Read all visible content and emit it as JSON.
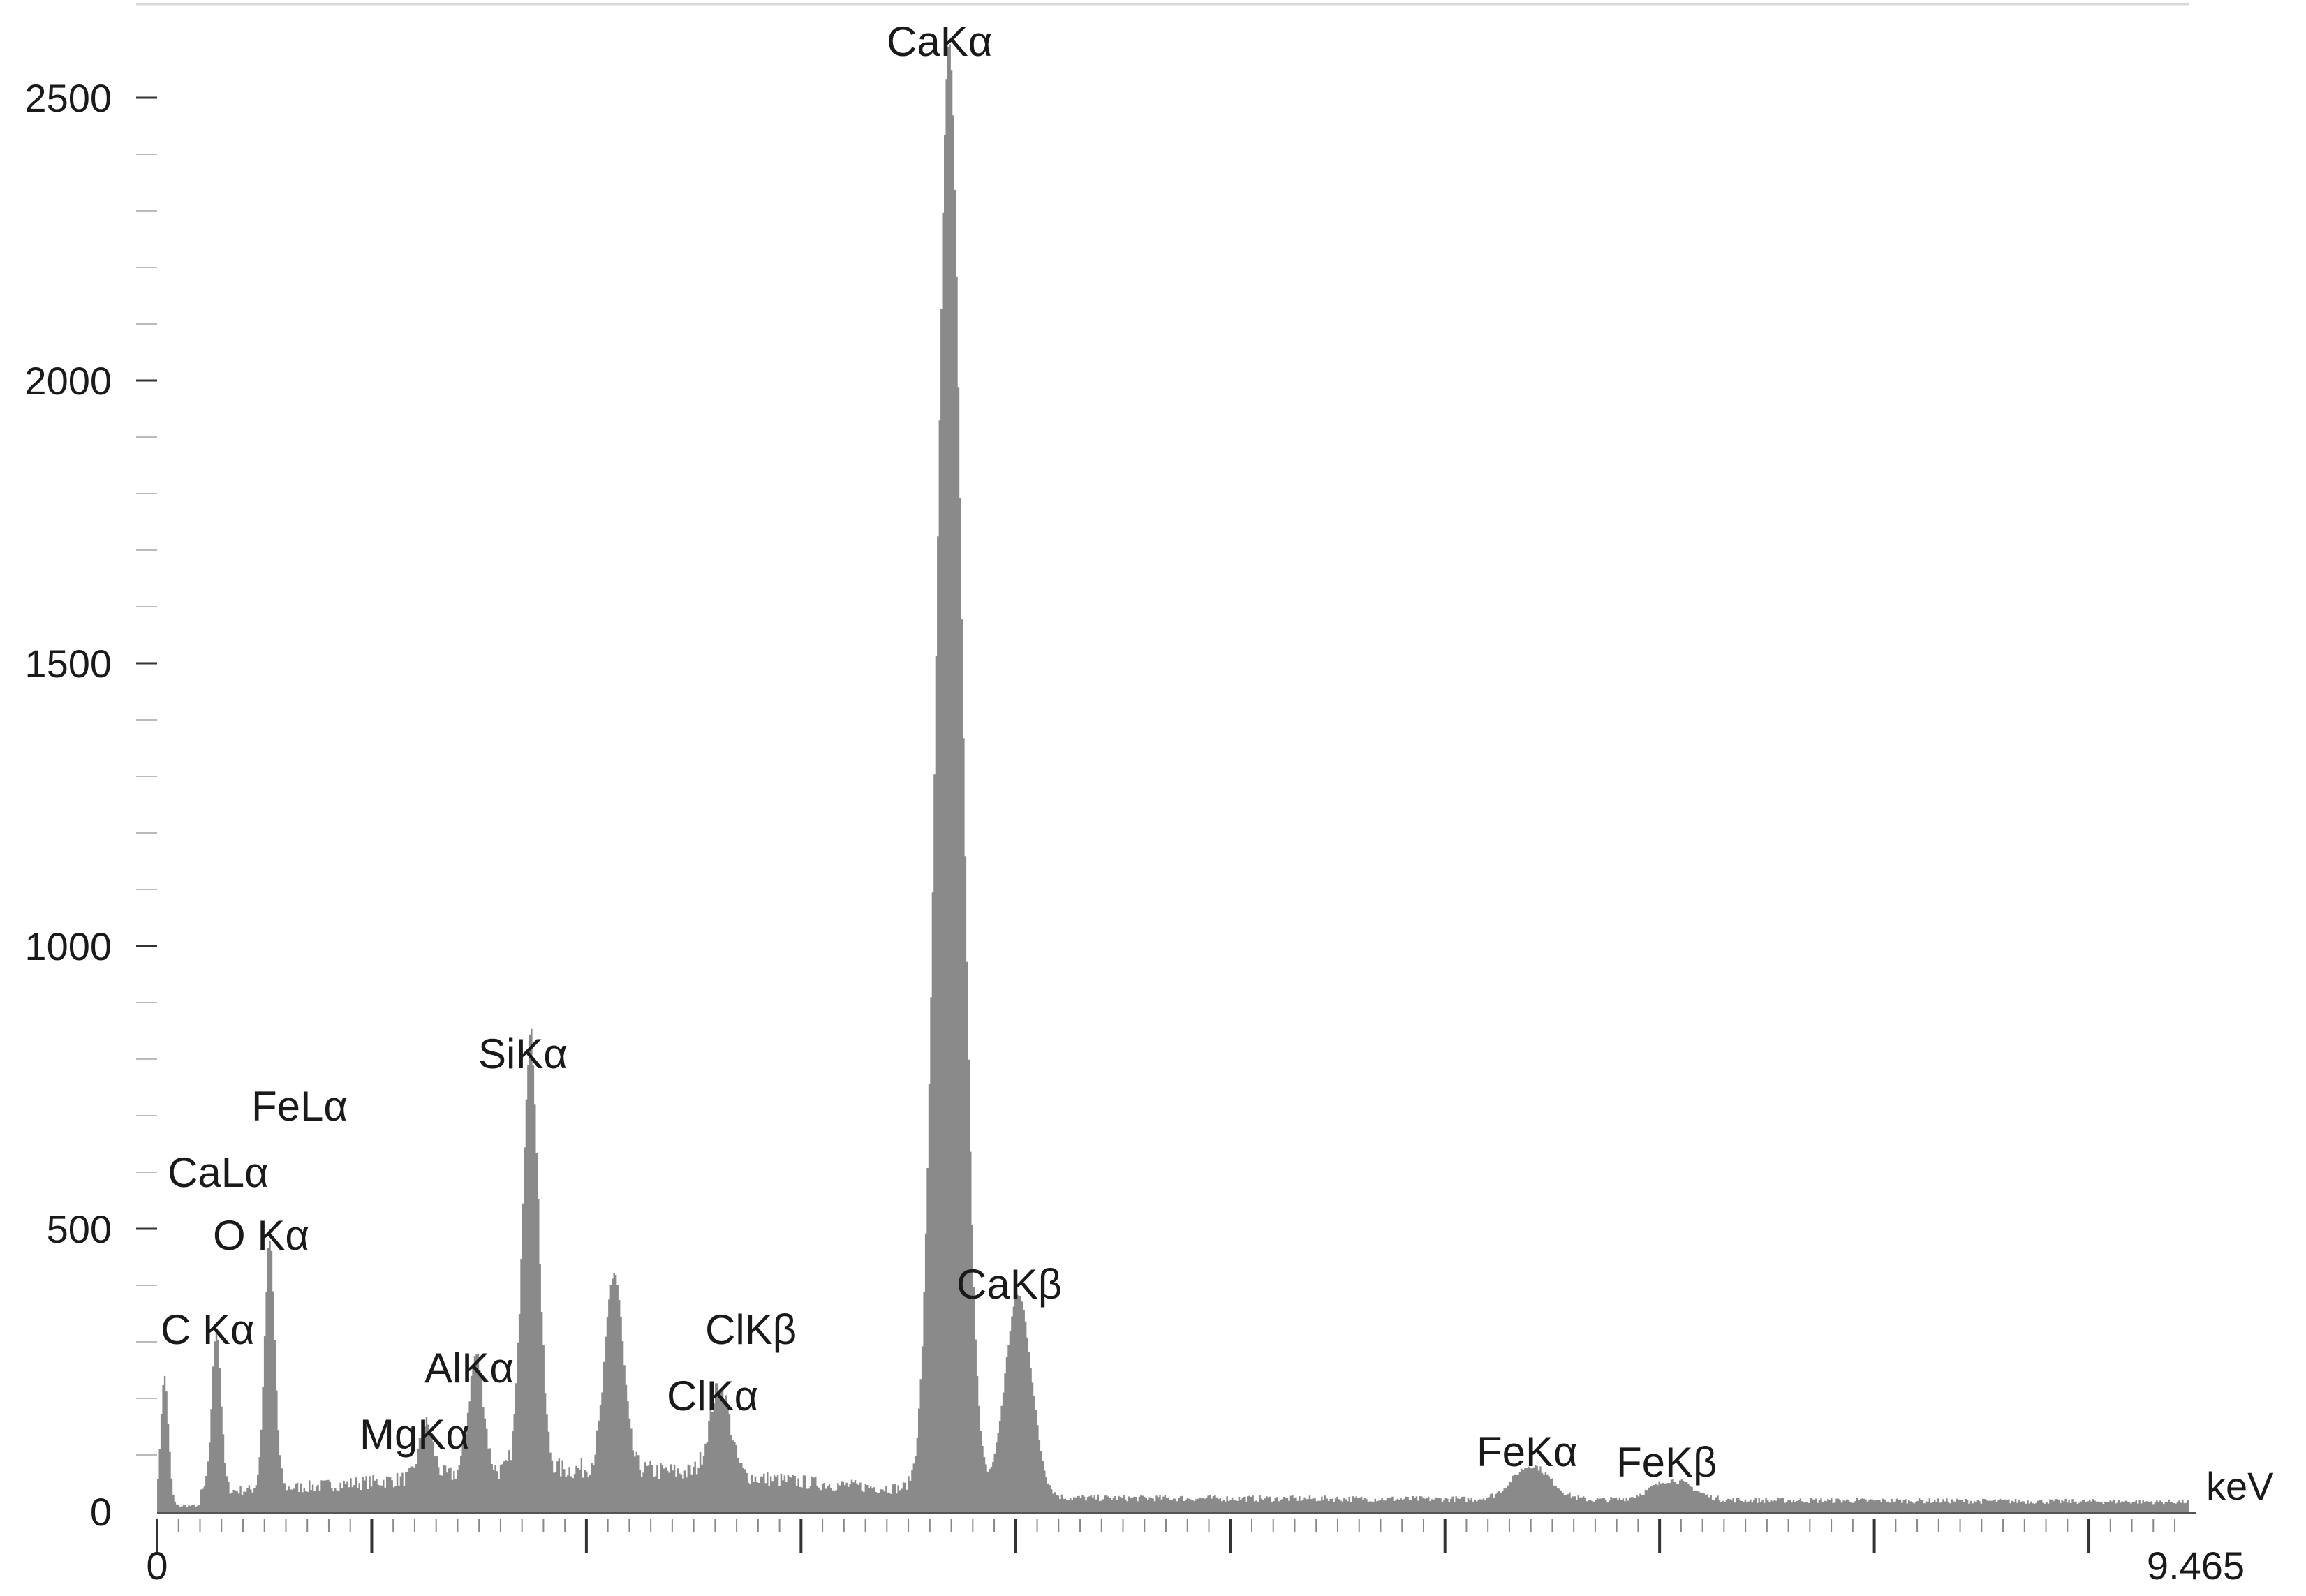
{
  "chart_data": {
    "type": "bar",
    "title": "",
    "xlabel": "keV",
    "ylabel": "",
    "xlim": [
      0,
      9.465
    ],
    "ylim": [
      0,
      2600
    ],
    "grid": false,
    "legend": "none",
    "bar_color": "#8a8a8a",
    "x_tick_labels": [
      {
        "value": 0,
        "label": "0"
      },
      {
        "value": 9.465,
        "label": "9.465"
      }
    ],
    "y_ticks": [
      0,
      500,
      1000,
      1500,
      2000,
      2500
    ],
    "y_tick_labels": [
      "0",
      "500",
      "1000",
      "1500",
      "2000",
      "2500"
    ],
    "peaks": [
      {
        "label": "C Kα",
        "energy": 0.277,
        "counts": 290
      },
      {
        "label": "O Kα",
        "energy": 0.525,
        "counts": 440
      },
      {
        "label": "CaLα",
        "energy": 0.341,
        "counts": 0
      },
      {
        "label": "FeLα",
        "energy": 0.705,
        "counts": 0
      },
      {
        "label": "MgKα",
        "energy": 1.254,
        "counts": 95
      },
      {
        "label": "AlKα",
        "energy": 1.487,
        "counts": 210
      },
      {
        "label": "SiKα",
        "energy": 1.74,
        "counts": 770
      },
      {
        "label": "ClKα",
        "energy": 2.622,
        "counts": 160
      },
      {
        "label": "ClKβ",
        "energy": 2.816,
        "counts": 0
      },
      {
        "label": "CaKα",
        "energy": 3.691,
        "counts": 2570
      },
      {
        "label": "CaKβ",
        "energy": 4.013,
        "counts": 360
      },
      {
        "label": "FeKα",
        "energy": 6.404,
        "counts": 60
      },
      {
        "label": "FeKβ",
        "energy": 7.058,
        "counts": 35
      }
    ],
    "extra_peaks": [
      {
        "energy": 0.035,
        "counts": 240
      },
      {
        "energy": 2.13,
        "counts": 350
      }
    ]
  }
}
